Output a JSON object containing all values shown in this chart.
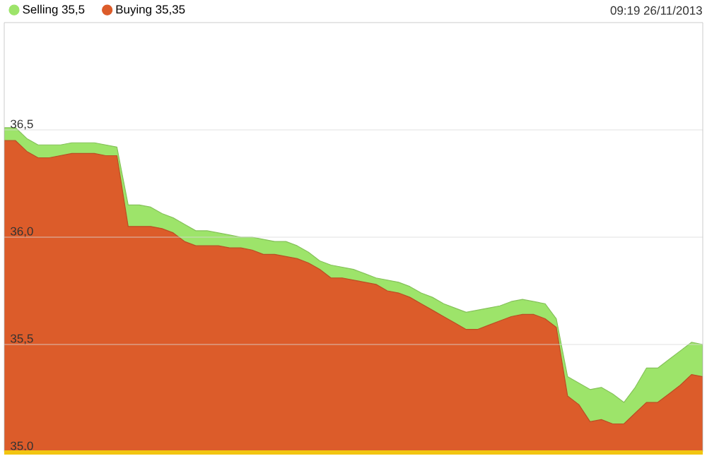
{
  "chart_data": {
    "type": "area",
    "categories": [
      null,
      null,
      null,
      null,
      null,
      null,
      null,
      null,
      null,
      null,
      null,
      null,
      null,
      null,
      null,
      null,
      null,
      null,
      null,
      null,
      null,
      null,
      null,
      null,
      null,
      null,
      null,
      null,
      null,
      null,
      null,
      null,
      null,
      null,
      null,
      null,
      null,
      null,
      null,
      null,
      null,
      null,
      null,
      null,
      null,
      null,
      null,
      null,
      null,
      null,
      null,
      null,
      null,
      null,
      null,
      null,
      null,
      null,
      null,
      null,
      null,
      null,
      null
    ],
    "series": [
      {
        "name": "Selling 35,5",
        "color": "#9de46a",
        "values": [
          36.51,
          36.51,
          36.46,
          36.43,
          36.43,
          36.43,
          36.44,
          36.44,
          36.44,
          36.43,
          36.42,
          36.15,
          36.15,
          36.14,
          36.11,
          36.09,
          36.06,
          36.03,
          36.03,
          36.02,
          36.01,
          36.0,
          36.0,
          35.99,
          35.98,
          35.98,
          35.96,
          35.93,
          35.89,
          35.87,
          35.86,
          35.85,
          35.83,
          35.81,
          35.8,
          35.79,
          35.77,
          35.74,
          35.72,
          35.69,
          35.67,
          35.65,
          35.66,
          35.67,
          35.68,
          35.7,
          35.71,
          35.7,
          35.69,
          35.62,
          35.35,
          35.32,
          35.29,
          35.3,
          35.27,
          35.23,
          35.3,
          35.39,
          35.39,
          35.43,
          35.47,
          35.51,
          35.5
        ]
      },
      {
        "name": "Buying 35,35",
        "color": "#dc5c2a",
        "values": [
          36.45,
          36.45,
          36.4,
          36.37,
          36.37,
          36.38,
          36.39,
          36.39,
          36.39,
          36.38,
          36.38,
          36.05,
          36.05,
          36.05,
          36.04,
          36.02,
          35.98,
          35.96,
          35.96,
          35.96,
          35.95,
          35.95,
          35.94,
          35.92,
          35.92,
          35.91,
          35.9,
          35.88,
          35.85,
          35.81,
          35.81,
          35.8,
          35.79,
          35.78,
          35.75,
          35.74,
          35.72,
          35.69,
          35.66,
          35.63,
          35.6,
          35.57,
          35.57,
          35.59,
          35.61,
          35.63,
          35.64,
          35.64,
          35.62,
          35.58,
          35.26,
          35.22,
          35.14,
          35.15,
          35.13,
          35.13,
          35.18,
          35.23,
          35.23,
          35.27,
          35.31,
          35.36,
          35.35
        ]
      }
    ],
    "ylim": [
      35,
      37
    ],
    "yticks": [
      {
        "value": 35.0,
        "label": "35,0"
      },
      {
        "value": 35.5,
        "label": "35,5"
      },
      {
        "value": 36.0,
        "label": "36,0"
      },
      {
        "value": 36.5,
        "label": "36,5"
      }
    ],
    "grid": "y",
    "legend": "top left",
    "tick_labels": "y",
    "annotations": [
      "09:19 26/11/2013"
    ]
  }
}
